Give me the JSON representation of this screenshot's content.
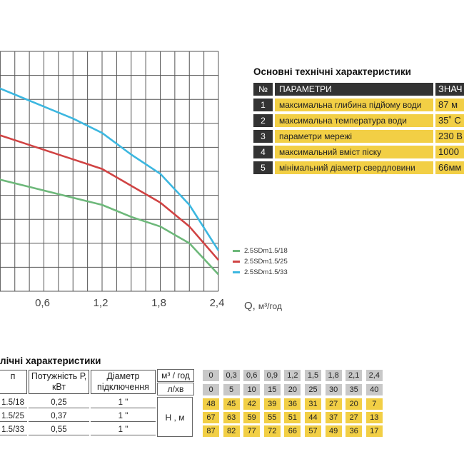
{
  "chart_data": {
    "type": "line",
    "xlabel": "Q,",
    "xunit": "м³/год",
    "x_ticks": [
      "0,6",
      "1,2",
      "1,8",
      "2,4"
    ],
    "xlim": [
      0,
      2.4
    ],
    "ylim": [
      0,
      100
    ],
    "series": [
      {
        "name": "2.5SDm1.5/18",
        "color": "#6db87a",
        "x": [
          0,
          0.3,
          0.6,
          0.9,
          1.2,
          1.5,
          1.8,
          2.1,
          2.4
        ],
        "y": [
          48,
          45,
          42,
          39,
          36,
          31,
          27,
          20,
          7
        ]
      },
      {
        "name": "2.5SDm1.5/25",
        "color": "#d04343",
        "x": [
          0,
          0.3,
          0.6,
          0.9,
          1.2,
          1.5,
          1.8,
          2.1,
          2.4
        ],
        "y": [
          67,
          63,
          59,
          55,
          51,
          44,
          37,
          27,
          13
        ]
      },
      {
        "name": "2.5SDm1.5/33",
        "color": "#3cb7e0",
        "x": [
          0,
          0.3,
          0.6,
          0.9,
          1.2,
          1.5,
          1.8,
          2.1,
          2.4
        ],
        "y": [
          87,
          82,
          77,
          72,
          66,
          57,
          49,
          36,
          17
        ]
      }
    ],
    "grid": true,
    "legend": "right"
  },
  "specs": {
    "title": "Основні технічні характеристики",
    "header": {
      "num": "№",
      "param": "ПАРАМЕТРИ",
      "value": "ЗНАЧ"
    },
    "rows": [
      {
        "num": "1",
        "param": "максимальна глибина підйому води",
        "value": "87 м"
      },
      {
        "num": "2",
        "param": "максимальна температура води",
        "value": "35˚ С"
      },
      {
        "num": "3",
        "param": "параметри мережі",
        "value": "230 В"
      },
      {
        "num": "4",
        "param": "максимальний вміст піску",
        "value": "1000"
      },
      {
        "num": "5",
        "param": "мінімальний діаметр свердловини",
        "value": "66мм"
      }
    ]
  },
  "perf": {
    "title": "лічні характеристики",
    "col_model": "п",
    "col_power": "Потужність Р, кВт",
    "col_diam": "Діаметр підключення",
    "unit_q": "м³ / год",
    "unit_l": "л/хв",
    "h_label": "Н , м",
    "q_values": [
      "0",
      "0,3",
      "0,6",
      "0,9",
      "1,2",
      "1,5",
      "1,8",
      "2,1",
      "2,4"
    ],
    "l_values": [
      "0",
      "5",
      "10",
      "15",
      "20",
      "25",
      "30",
      "35",
      "40"
    ],
    "rows": [
      {
        "model": "1.5/18",
        "power": "0,25",
        "diam": "1 \"",
        "h": [
          "48",
          "45",
          "42",
          "39",
          "36",
          "31",
          "27",
          "20",
          "7"
        ]
      },
      {
        "model": "1.5/25",
        "power": "0,37",
        "diam": "1 \"",
        "h": [
          "67",
          "63",
          "59",
          "55",
          "51",
          "44",
          "37",
          "27",
          "13"
        ]
      },
      {
        "model": "1.5/33",
        "power": "0,55",
        "diam": "1 \"",
        "h": [
          "87",
          "82",
          "77",
          "72",
          "66",
          "57",
          "49",
          "36",
          "17"
        ]
      }
    ]
  }
}
